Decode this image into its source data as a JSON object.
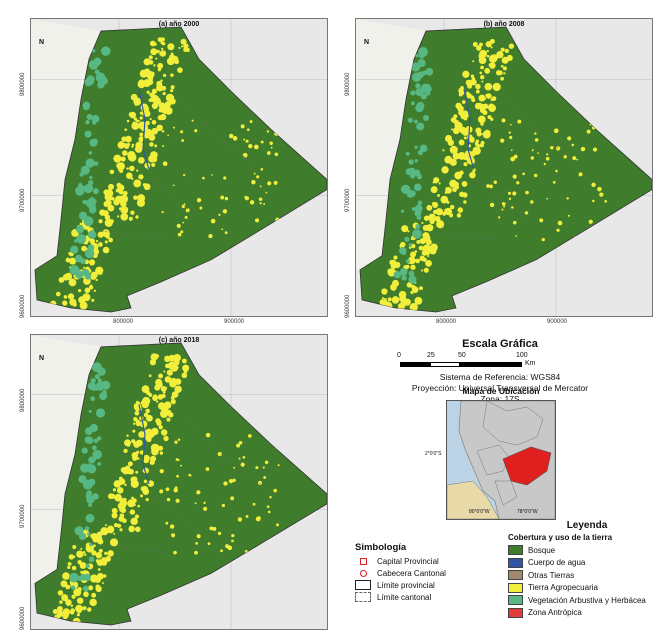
{
  "panels": [
    {
      "title": "(a) año 2000",
      "x_ticks": [
        "800000",
        "900000"
      ],
      "y_ticks": [
        "9800000",
        "9700000",
        "9600000"
      ]
    },
    {
      "title": "(b) año 2008",
      "x_ticks": [
        "800000",
        "900000"
      ],
      "y_ticks": [
        "9800000",
        "9700000",
        "9600000"
      ]
    },
    {
      "title": "(c) año 2018",
      "x_ticks": [
        "800000",
        "900000"
      ],
      "y_ticks": [
        "9800000",
        "9700000",
        "9600000"
      ]
    }
  ],
  "north_label": "N",
  "scale": {
    "title": "Escala Gráfica",
    "ticks": [
      "0",
      "25",
      "50",
      "100"
    ],
    "unit": "Km"
  },
  "projection": {
    "line1": "Sistema de Referencia: WGS84",
    "line2": "Proyección: Universal Transversal de Mercator",
    "line3": "Zona: 17S"
  },
  "location_map": {
    "title": "Mapa de Ubicación",
    "lat_label": "2°0'0\"S",
    "lon_labels": [
      "80°0'0\"W",
      "78°0'0\"W"
    ]
  },
  "legend": {
    "title": "Leyenda",
    "subtitle": "Cobertura y uso de la tierra",
    "items": [
      {
        "label": "Bosque",
        "color": "#3f7d2c"
      },
      {
        "label": "Cuerpo de agua",
        "color": "#3355a8"
      },
      {
        "label": "Otras Tierras",
        "color": "#a08a6a"
      },
      {
        "label": "Tierra Agropecuaria",
        "color": "#f2ee3c"
      },
      {
        "label": "Vegetación Arbustiva y Herbácea",
        "color": "#57b883"
      },
      {
        "label": "Zona Antrópica",
        "color": "#e23b3b"
      }
    ]
  },
  "simbologia": {
    "title": "Simbología",
    "items": [
      {
        "label": "Capital Provincial",
        "icon": "square-icon"
      },
      {
        "label": "Cabecera Cantonal",
        "icon": "circle-icon"
      },
      {
        "label": "Límite provincial",
        "icon": "solid-box-icon"
      },
      {
        "label": "Límite cantonal",
        "icon": "dashed-box-icon"
      }
    ]
  }
}
